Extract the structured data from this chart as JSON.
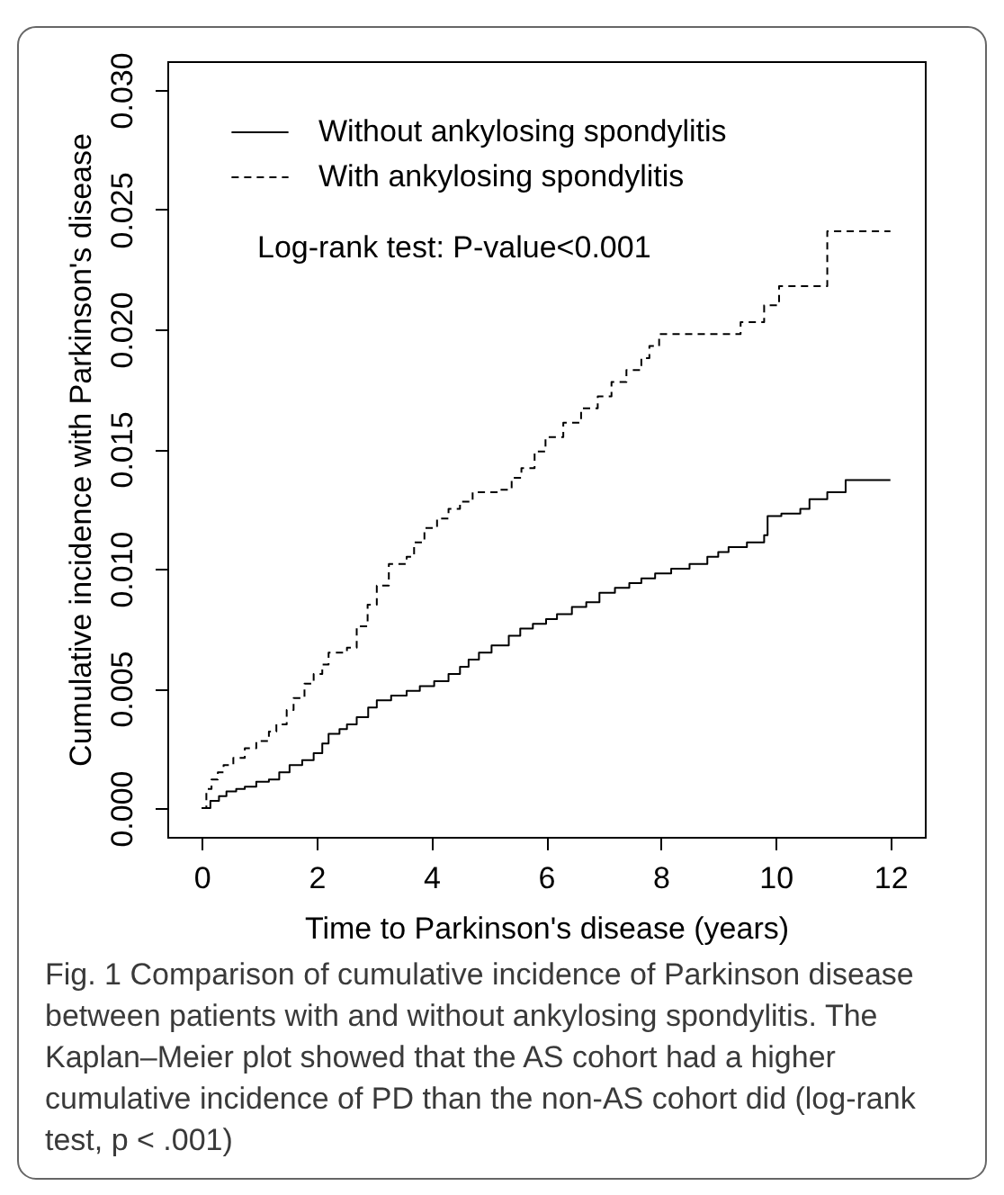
{
  "chart_data": {
    "type": "step",
    "xlabel": "Time to Parkinson's disease (years)",
    "ylabel": "Cumulative incidence with Parkinson's disease",
    "xlim": [
      -0.6,
      12.6
    ],
    "xticks": [
      0,
      2,
      4,
      6,
      8,
      10,
      12
    ],
    "ylim": [
      -0.0012,
      0.0312
    ],
    "yticks": [
      {
        "value": 0,
        "label": "0.000"
      },
      0.005,
      {
        "value": 0.01,
        "label": "0.010"
      },
      0.015,
      {
        "value": 0.02,
        "label": "0.020"
      },
      0.025,
      {
        "value": 0.03,
        "label": "0.030"
      }
    ],
    "grid": false,
    "legend": "top left",
    "annotations": [
      "Log-rank test: P-value<0.001",
      "Fig. 1 Comparison of cumulative incidence of Parkinson disease between patients with and without ankylosing spondylitis. The Kaplan–Meier plot showed that the AS cohort had a higher cumulative incidence of PD than the non-AS cohort did (log-rank test, p < .001)"
    ],
    "series": [
      {
        "name": "Without ankylosing spondylitis",
        "color": "#000000",
        "line_style": "solid",
        "x": [
          0,
          0.15,
          0.3,
          0.43,
          0.6,
          0.75,
          0.95,
          1.17,
          1.35,
          1.53,
          1.75,
          1.95,
          2.1,
          2.21,
          2.4,
          2.53,
          2.7,
          2.9,
          3.05,
          3.3,
          3.57,
          3.8,
          4.05,
          4.3,
          4.5,
          4.65,
          4.83,
          5.05,
          5.35,
          5.55,
          5.77,
          6.0,
          6.19,
          6.45,
          6.7,
          6.93,
          7.2,
          7.45,
          7.66,
          7.9,
          8.18,
          8.5,
          8.81,
          9.0,
          9.18,
          9.5,
          9.8,
          9.86,
          10.1,
          10.43,
          10.59,
          10.9,
          11.22,
          12
        ],
        "values": [
          0,
          0.0003,
          0.0005,
          0.0007,
          0.0008,
          0.0009,
          0.0011,
          0.0012,
          0.0015,
          0.0018,
          0.002,
          0.0023,
          0.0027,
          0.0031,
          0.0033,
          0.0035,
          0.0038,
          0.0042,
          0.0045,
          0.0047,
          0.0049,
          0.0051,
          0.0053,
          0.0056,
          0.0059,
          0.0062,
          0.0065,
          0.0068,
          0.0072,
          0.0075,
          0.0077,
          0.0079,
          0.0081,
          0.0084,
          0.0086,
          0.009,
          0.0092,
          0.0094,
          0.0096,
          0.0098,
          0.01,
          0.0102,
          0.0105,
          0.0107,
          0.0109,
          0.0111,
          0.0114,
          0.0122,
          0.0123,
          0.0125,
          0.0129,
          0.0132,
          0.0137,
          0.0137
        ]
      },
      {
        "name": "With ankylosing spondylitis",
        "color": "#000000",
        "line_style": "dashed",
        "x": [
          0,
          0.08,
          0.17,
          0.28,
          0.38,
          0.55,
          0.75,
          0.95,
          1.17,
          1.3,
          1.48,
          1.6,
          1.79,
          1.95,
          2.1,
          2.21,
          2.53,
          2.7,
          2.89,
          3.05,
          3.26,
          3.57,
          3.7,
          3.88,
          4.1,
          4.3,
          4.5,
          4.72,
          5.19,
          5.4,
          5.57,
          5.8,
          5.99,
          6.3,
          6.61,
          6.9,
          7.14,
          7.4,
          7.66,
          7.8,
          7.97,
          9.39,
          9.8,
          10.06,
          10.9,
          12
        ],
        "values": [
          0,
          0.0008,
          0.0012,
          0.0015,
          0.0018,
          0.0021,
          0.0025,
          0.0028,
          0.0032,
          0.0035,
          0.0041,
          0.0046,
          0.0052,
          0.0056,
          0.006,
          0.0065,
          0.0067,
          0.0076,
          0.0085,
          0.0093,
          0.0102,
          0.0105,
          0.0111,
          0.0117,
          0.0121,
          0.0125,
          0.0128,
          0.0132,
          0.0133,
          0.0138,
          0.0142,
          0.0149,
          0.0155,
          0.0161,
          0.0167,
          0.0172,
          0.0178,
          0.0183,
          0.0188,
          0.0193,
          0.0198,
          0.0203,
          0.021,
          0.0218,
          0.0241,
          0.0241
        ]
      }
    ]
  }
}
